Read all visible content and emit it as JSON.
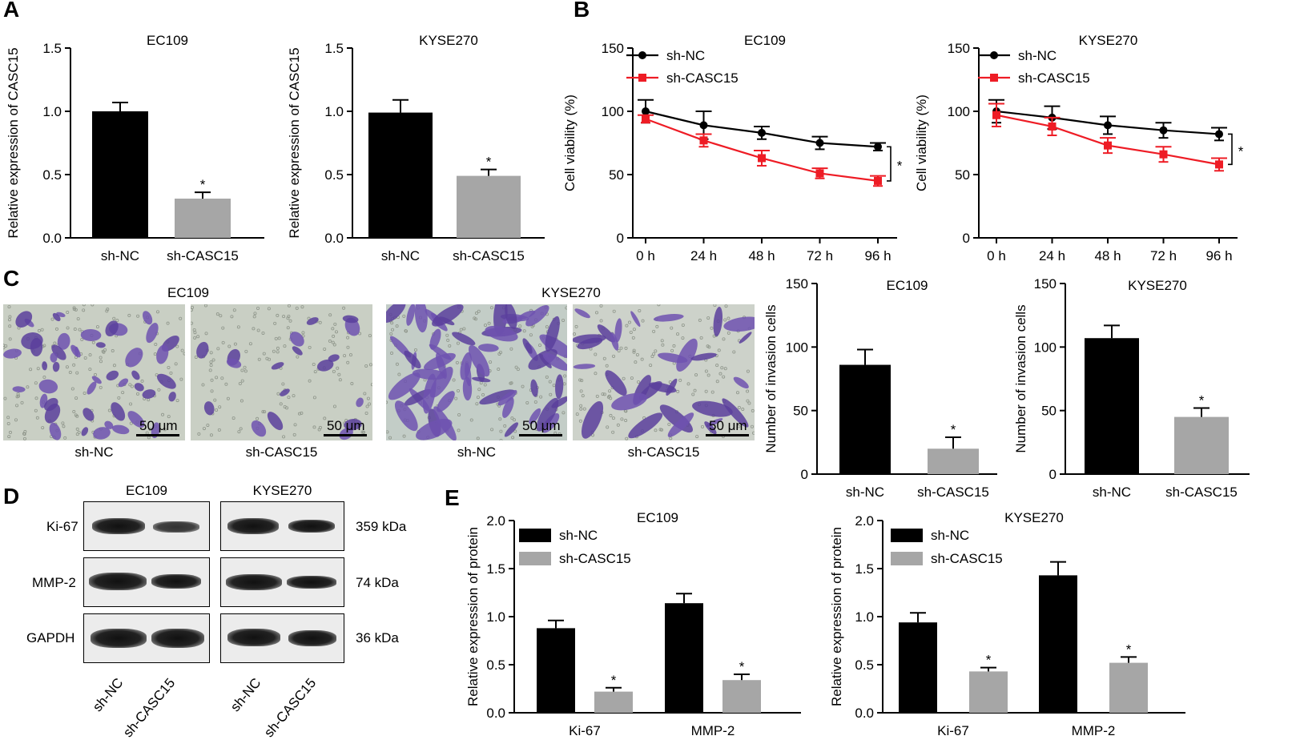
{
  "panels": {
    "A": "A",
    "B": "B",
    "C": "C",
    "D": "D",
    "E": "E"
  },
  "colors": {
    "black": "#000000",
    "gray": "#a6a6a6",
    "red": "#ee1c25"
  },
  "chart_data": [
    {
      "id": "A1",
      "type": "bar",
      "title": "EC109",
      "ylabel": "Relative expression of CASC15",
      "categories": [
        "sh-NC",
        "sh-CASC15"
      ],
      "values": [
        1.0,
        0.31
      ],
      "errors": [
        0.07,
        0.05
      ],
      "stars": [
        "",
        "*"
      ],
      "ylim": [
        0,
        1.5
      ],
      "yticks": [
        "0.0",
        "0.5",
        "1.0",
        "1.5"
      ]
    },
    {
      "id": "A2",
      "type": "bar",
      "title": "KYSE270",
      "ylabel": "Relative expression of CASC15",
      "categories": [
        "sh-NC",
        "sh-CASC15"
      ],
      "values": [
        0.99,
        0.49
      ],
      "errors": [
        0.1,
        0.05
      ],
      "stars": [
        "",
        "*"
      ],
      "ylim": [
        0,
        1.5
      ],
      "yticks": [
        "0.0",
        "0.5",
        "1.0",
        "1.5"
      ]
    },
    {
      "id": "B1",
      "type": "line",
      "title": "EC109",
      "ylabel": "Cell viability (%)",
      "x": [
        "0 h",
        "24 h",
        "48 h",
        "72 h",
        "96 h"
      ],
      "ylim": [
        0,
        150
      ],
      "yticks": [
        "0",
        "50",
        "100",
        "150"
      ],
      "series": [
        {
          "name": "sh-NC",
          "values": [
            100,
            89,
            83,
            75,
            72
          ],
          "errors": [
            9,
            11,
            5,
            5,
            3
          ]
        },
        {
          "name": "sh-CASC15",
          "values": [
            94,
            77,
            63,
            51,
            45
          ],
          "errors": [
            3,
            5,
            6,
            4,
            4
          ]
        }
      ],
      "bracket_star": "*"
    },
    {
      "id": "B2",
      "type": "line",
      "title": "KYSE270",
      "ylabel": "Cell viability (%)",
      "x": [
        "0 h",
        "24 h",
        "48 h",
        "72 h",
        "96 h"
      ],
      "ylim": [
        0,
        150
      ],
      "yticks": [
        "0",
        "50",
        "100",
        "150"
      ],
      "series": [
        {
          "name": "sh-NC",
          "values": [
            100,
            95,
            89,
            85,
            82
          ],
          "errors": [
            9,
            9,
            7,
            6,
            5
          ]
        },
        {
          "name": "sh-CASC15",
          "values": [
            97,
            88,
            73,
            66,
            58
          ],
          "errors": [
            9,
            7,
            6,
            6,
            5
          ]
        }
      ],
      "bracket_star": "*"
    },
    {
      "id": "C1",
      "type": "bar",
      "title": "EC109",
      "ylabel": "Number of invasion cells",
      "categories": [
        "sh-NC",
        "sh-CASC15"
      ],
      "values": [
        86,
        20
      ],
      "errors": [
        12,
        9
      ],
      "stars": [
        "",
        "*"
      ],
      "ylim": [
        0,
        150
      ],
      "yticks": [
        "0",
        "50",
        "100",
        "150"
      ]
    },
    {
      "id": "C2",
      "type": "bar",
      "title": "KYSE270",
      "ylabel": "Number of invasion cells",
      "categories": [
        "sh-NC",
        "sh-CASC15"
      ],
      "values": [
        107,
        45
      ],
      "errors": [
        10,
        7
      ],
      "stars": [
        "",
        "*"
      ],
      "ylim": [
        0,
        150
      ],
      "yticks": [
        "0",
        "50",
        "100",
        "150"
      ]
    },
    {
      "id": "E1",
      "type": "bar",
      "title": "EC109",
      "ylabel": "Relative expression of protein",
      "categories": [
        "Ki-67",
        "MMP-2"
      ],
      "series": [
        {
          "name": "sh-NC",
          "values": [
            0.88,
            1.14
          ],
          "errors": [
            0.08,
            0.1
          ]
        },
        {
          "name": "sh-CASC15",
          "values": [
            0.22,
            0.34
          ],
          "errors": [
            0.04,
            0.06
          ]
        }
      ],
      "stars": [
        "*",
        "*"
      ],
      "ylim": [
        0,
        2.0
      ],
      "yticks": [
        "0.0",
        "0.5",
        "1.0",
        "1.5",
        "2.0"
      ]
    },
    {
      "id": "E2",
      "type": "bar",
      "title": "KYSE270",
      "ylabel": "Relative expression of protein",
      "categories": [
        "Ki-67",
        "MMP-2"
      ],
      "series": [
        {
          "name": "sh-NC",
          "values": [
            0.94,
            1.43
          ],
          "errors": [
            0.1,
            0.14
          ]
        },
        {
          "name": "sh-CASC15",
          "values": [
            0.43,
            0.52
          ],
          "errors": [
            0.04,
            0.06
          ]
        }
      ],
      "stars": [
        "*",
        "*"
      ],
      "ylim": [
        0,
        2.0
      ],
      "yticks": [
        "0.0",
        "0.5",
        "1.0",
        "1.5",
        "2.0"
      ]
    }
  ],
  "micrographs": {
    "group_titles": [
      "EC109",
      "KYSE270"
    ],
    "captions": [
      "sh-NC",
      "sh-CASC15",
      "sh-NC",
      "sh-CASC15"
    ],
    "scale_label": "50 μm"
  },
  "blot": {
    "titles": [
      "EC109",
      "KYSE270"
    ],
    "rows": [
      "Ki-67",
      "MMP-2",
      "GAPDH"
    ],
    "kda": [
      "359 kDa",
      "74 kDa",
      "36 kDa"
    ],
    "captions": [
      "sh-NC",
      "sh-CASC15",
      "sh-NC",
      "sh-CASC15"
    ]
  }
}
